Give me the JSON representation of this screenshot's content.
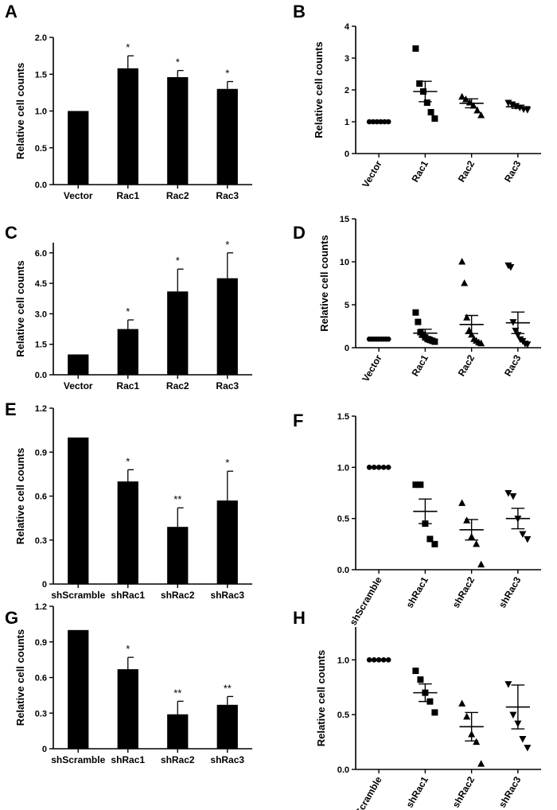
{
  "chart_data": [
    {
      "panel": "A",
      "type": "bar",
      "ylabel": "Relative cell counts",
      "xlabel": "",
      "categories": [
        "Vector",
        "Rac1",
        "Rac2",
        "Rac3"
      ],
      "values": [
        1.0,
        1.58,
        1.46,
        1.3
      ],
      "errors": [
        0.0,
        0.17,
        0.09,
        0.1
      ],
      "significance": [
        "",
        "*",
        "*",
        "*"
      ],
      "ylim": [
        0,
        2.0
      ],
      "yticks": [
        "0.0",
        "0.5",
        "1.0",
        "1.5",
        "2.0"
      ],
      "yticks_values": [
        0,
        0.5,
        1.0,
        1.5,
        2.0
      ]
    },
    {
      "panel": "B",
      "type": "scatter",
      "ylabel": "Relative cell counts",
      "xlabel": "",
      "categories": [
        "Vector",
        "Rac1",
        "Rac2",
        "Rac3"
      ],
      "markers": [
        "circle",
        "square",
        "triangle",
        "inverted-triangle"
      ],
      "points": [
        [
          1,
          1,
          1,
          1,
          1,
          1
        ],
        [
          3.3,
          2.2,
          1.95,
          1.6,
          1.3,
          1.1
        ],
        [
          1.78,
          1.7,
          1.6,
          1.5,
          1.35,
          1.2
        ],
        [
          1.6,
          1.55,
          1.5,
          1.45,
          1.4,
          1.38
        ]
      ],
      "means": [
        1.0,
        1.95,
        1.58,
        1.47
      ],
      "sems": [
        0.0,
        0.32,
        0.14,
        0.05
      ],
      "ylim": [
        0,
        4
      ],
      "yticks": [
        "0",
        "1",
        "2",
        "3",
        "4"
      ],
      "yticks_values": [
        0,
        1,
        2,
        3,
        4
      ]
    },
    {
      "panel": "C",
      "type": "bar",
      "ylabel": "Relative cell counts",
      "xlabel": "",
      "categories": [
        "Vector",
        "Rac1",
        "Rac2",
        "Rac3"
      ],
      "values": [
        1.0,
        2.25,
        4.1,
        4.75
      ],
      "errors": [
        0.0,
        0.45,
        1.1,
        1.25
      ],
      "significance": [
        "",
        "*",
        "*",
        "*"
      ],
      "ylim": [
        0,
        6.5
      ],
      "yticks": [
        "0.0",
        "1.5",
        "3.0",
        "4.5",
        "6.0"
      ],
      "yticks_values": [
        0,
        1.5,
        3.0,
        4.5,
        6.0
      ]
    },
    {
      "panel": "D",
      "type": "scatter",
      "ylabel": "Relative cell counts",
      "xlabel": "",
      "categories": [
        "Vector",
        "Rac1",
        "Rac2",
        "Rac3"
      ],
      "markers": [
        "circle",
        "square",
        "triangle",
        "inverted-triangle"
      ],
      "points": [
        [
          1,
          1,
          1,
          1,
          1,
          1,
          1,
          1,
          1
        ],
        [
          4.1,
          3.0,
          1.8,
          1.5,
          1.2,
          1.0,
          0.9,
          0.8,
          0.7
        ],
        [
          10.0,
          7.5,
          3.5,
          2.0,
          1.5,
          1.0,
          0.8,
          0.6,
          0.5
        ],
        [
          9.6,
          9.4,
          3.0,
          2.0,
          1.5,
          1.0,
          0.8,
          0.5,
          0.4
        ]
      ],
      "means": [
        1.0,
        1.7,
        2.7,
        2.9
      ],
      "sems": [
        0.0,
        0.45,
        1.05,
        1.25
      ],
      "ylim": [
        0,
        15
      ],
      "yticks": [
        "0",
        "5",
        "10",
        "15"
      ],
      "yticks_values": [
        0,
        5,
        10,
        15
      ]
    },
    {
      "panel": "E",
      "type": "bar",
      "ylabel": "Relative cell counts",
      "xlabel": "",
      "categories": [
        "shScramble",
        "shRac1",
        "shRac2",
        "shRac3"
      ],
      "values": [
        1.0,
        0.7,
        0.39,
        0.57
      ],
      "errors": [
        0.0,
        0.08,
        0.13,
        0.2
      ],
      "significance": [
        "",
        "*",
        "**",
        "*"
      ],
      "ylim": [
        0,
        1.2
      ],
      "yticks": [
        "0",
        "0.3",
        "0.6",
        "0.9",
        "1.2"
      ],
      "yticks_values": [
        0,
        0.3,
        0.6,
        0.9,
        1.2
      ]
    },
    {
      "panel": "F",
      "type": "scatter",
      "ylabel": "",
      "xlabel": "",
      "categories": [
        "shScramble",
        "shRac1",
        "shRac2",
        "shRac3"
      ],
      "markers": [
        "circle",
        "square",
        "triangle",
        "inverted-triangle"
      ],
      "points": [
        [
          1,
          1,
          1,
          1,
          1
        ],
        [
          0.83,
          0.83,
          0.45,
          0.3,
          0.25
        ],
        [
          0.65,
          0.48,
          0.32,
          0.25,
          0.05
        ],
        [
          0.75,
          0.72,
          0.5,
          0.35,
          0.3
        ]
      ],
      "means": [
        1.0,
        0.57,
        0.39,
        0.5
      ],
      "sems": [
        0.0,
        0.12,
        0.1,
        0.1
      ],
      "ylim": [
        0,
        1.5
      ],
      "yticks": [
        "0.0",
        "0.5",
        "1.0",
        "1.5"
      ],
      "yticks_values": [
        0,
        0.5,
        1.0,
        1.5
      ]
    },
    {
      "panel": "G",
      "type": "bar",
      "ylabel": "Relative cell counts",
      "xlabel": "",
      "categories": [
        "shScramble",
        "shRac1",
        "shRac2",
        "shRac3"
      ],
      "values": [
        1.0,
        0.67,
        0.29,
        0.37
      ],
      "errors": [
        0.0,
        0.1,
        0.11,
        0.07
      ],
      "significance": [
        "",
        "*",
        "**",
        "**"
      ],
      "ylim": [
        0,
        1.2
      ],
      "yticks": [
        "0",
        "0.3",
        "0.6",
        "0.9",
        "1.2"
      ],
      "yticks_values": [
        0,
        0.3,
        0.6,
        0.9,
        1.2
      ]
    },
    {
      "panel": "H",
      "type": "scatter",
      "ylabel": "Relative cell counts",
      "xlabel": "",
      "categories": [
        "shScramble",
        "shRac1",
        "shRac2",
        "shRac3"
      ],
      "markers": [
        "circle",
        "square",
        "triangle",
        "inverted-triangle"
      ],
      "points": [
        [
          1,
          1,
          1,
          1,
          1
        ],
        [
          0.9,
          0.82,
          0.7,
          0.62,
          0.52
        ],
        [
          0.6,
          0.48,
          0.32,
          0.25,
          0.05
        ],
        [
          0.78,
          0.5,
          0.42,
          0.28,
          0.2
        ]
      ],
      "means": [
        1.0,
        0.7,
        0.39,
        0.57
      ],
      "sems": [
        0.0,
        0.08,
        0.13,
        0.2
      ],
      "ylim": [
        0,
        1.3
      ],
      "yticks": [
        "0.0",
        "0.5",
        "1.0"
      ],
      "yticks_values": [
        0,
        0.5,
        1.0
      ]
    }
  ]
}
